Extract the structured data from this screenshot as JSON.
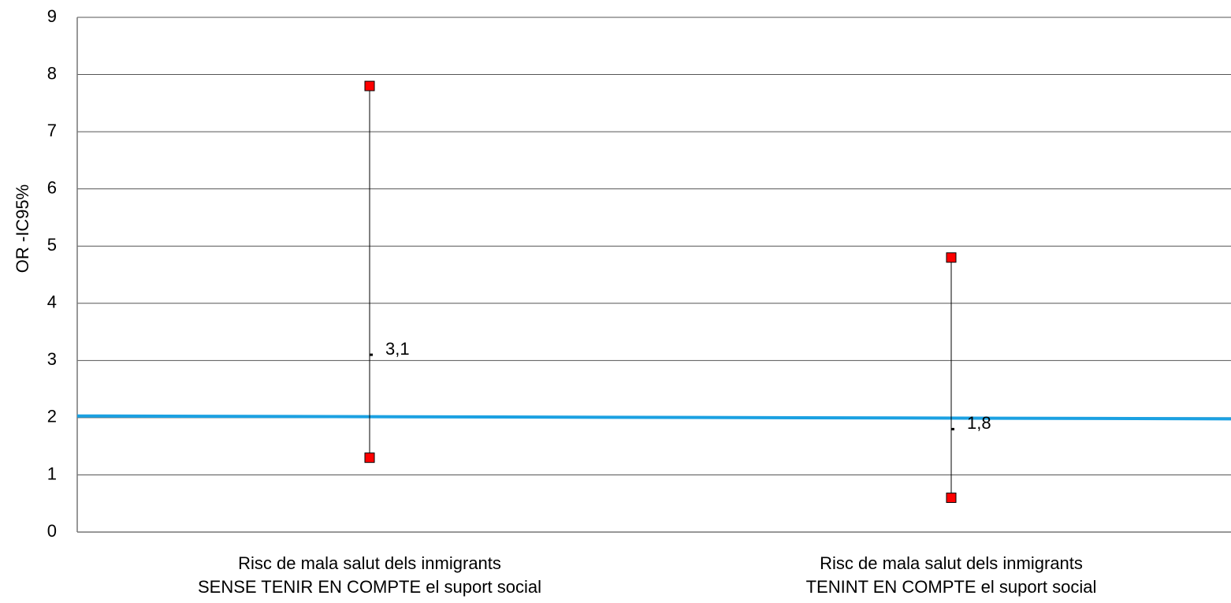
{
  "chart_data": {
    "type": "hilo",
    "y_label": "OR  -IC95%",
    "categories": [
      "Risc de mala salut dels inmigrants\nSENSE TENIR EN COMPTE el suport social",
      "Risc de mala salut dels inmigrants\nTENINT EN COMPTE el suport social"
    ],
    "series": [
      {
        "name": "high",
        "color": "#ff0000",
        "values": [
          7.8,
          4.8
        ]
      },
      {
        "name": "low",
        "color": "#ff0000",
        "values": [
          1.3,
          0.6
        ]
      },
      {
        "name": "OR",
        "color": "#000000",
        "values": [
          3.1,
          1.8
        ],
        "value_labels": [
          "3,1",
          "1,8"
        ]
      }
    ],
    "reference_line": {
      "color": "#1ba1e2",
      "values": [
        2.03,
        1.98
      ]
    },
    "ylim": [
      0,
      9
    ],
    "yticks": [
      0,
      1,
      2,
      3,
      4,
      5,
      6,
      7,
      8,
      9
    ],
    "grid": true
  }
}
